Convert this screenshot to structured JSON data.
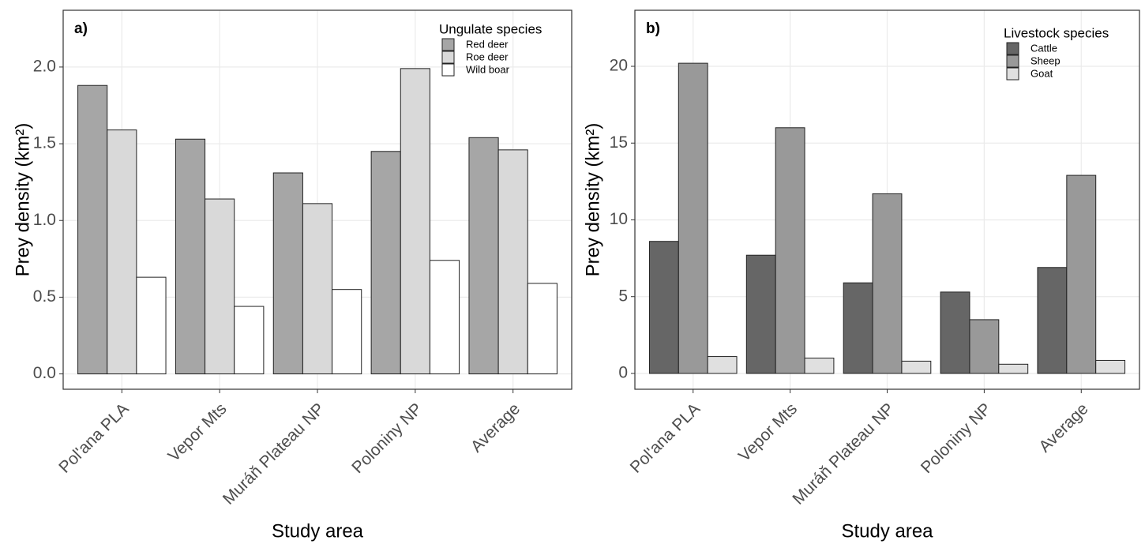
{
  "chart_data": [
    {
      "type": "bar",
      "panel_label": "a)",
      "y_label": "Prey density (km²)",
      "x_label": "Study area",
      "legend_title": "Ungulate species",
      "categories": [
        "Pol'ana PLA",
        "Vepor Mts",
        "Muráň Plateau NP",
        "Poloniny NP",
        "Average"
      ],
      "series": [
        {
          "name": "Red deer",
          "color": "#a6a6a6",
          "values": [
            1.88,
            1.53,
            1.31,
            1.45,
            1.54
          ]
        },
        {
          "name": "Roe deer",
          "color": "#d9d9d9",
          "values": [
            1.59,
            1.14,
            1.11,
            1.99,
            1.46
          ]
        },
        {
          "name": "Wild boar",
          "color": "#ffffff",
          "values": [
            0.63,
            0.44,
            0.55,
            0.74,
            0.59
          ]
        }
      ],
      "ylim": [
        -0.1,
        2.37
      ],
      "yticks": [
        {
          "value": 0,
          "label": "0.0"
        },
        {
          "value": 0.5,
          "label": "0.5"
        },
        {
          "value": 1,
          "label": "1.0"
        },
        {
          "value": 1.5,
          "label": "1.5"
        },
        {
          "value": 2,
          "label": "2.0"
        }
      ],
      "grid": true
    },
    {
      "type": "bar",
      "panel_label": "b)",
      "y_label": "Prey density (km²)",
      "x_label": "Study area",
      "legend_title": "Livestock species",
      "categories": [
        "Pol'ana PLA",
        "Vepor Mts",
        "Muráň Plateau NP",
        "Poloniny NP",
        "Average"
      ],
      "series": [
        {
          "name": "Cattle",
          "color": "#666666",
          "values": [
            8.6,
            7.7,
            5.9,
            5.3,
            6.9
          ]
        },
        {
          "name": "Sheep",
          "color": "#999999",
          "values": [
            20.2,
            16.0,
            11.7,
            3.5,
            12.9
          ]
        },
        {
          "name": "Goat",
          "color": "#e0e0e0",
          "values": [
            1.1,
            1.0,
            0.8,
            0.6,
            0.85
          ]
        }
      ],
      "ylim": [
        -1.03,
        23.65
      ],
      "yticks": [
        0,
        5,
        10,
        15,
        20
      ],
      "grid": true
    }
  ]
}
